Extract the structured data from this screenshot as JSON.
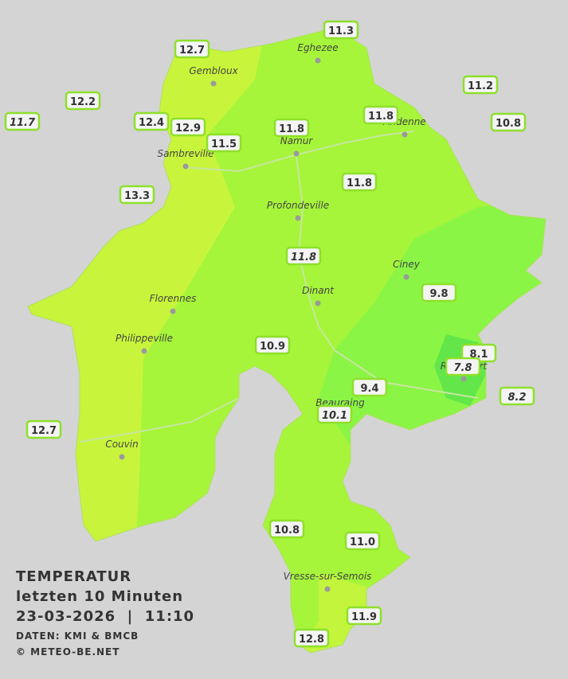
{
  "title": {
    "line1": "TEMPERATUR",
    "line2": "letzten 10 Minuten",
    "line3": "23-03-2026  |  11:10",
    "source": "DATEN: KMI & BMCB",
    "copyright": "© METEO-BE.NET"
  },
  "cities": [
    "Eghezee",
    "Gembloux",
    "Andenne",
    "Namur",
    "Sambreville",
    "Profondeville",
    "Ciney",
    "Dinant",
    "Florennes",
    "Philippeville",
    "Rochefort",
    "Beauraing",
    "Couvin",
    "Vresse-sur-Semois"
  ],
  "readings": [
    11.3,
    12.7,
    12.2,
    11.7,
    12.4,
    12.9,
    11.5,
    11.8,
    11.8,
    11.2,
    10.8,
    11.8,
    13.3,
    11.8,
    9.8,
    10.9,
    8.1,
    7.8,
    8.2,
    9.4,
    10.1,
    12.7,
    10.8,
    {
      "value": 11.0,
      "label": "11.0"
    },
    11.9,
    12.8
  ]
}
